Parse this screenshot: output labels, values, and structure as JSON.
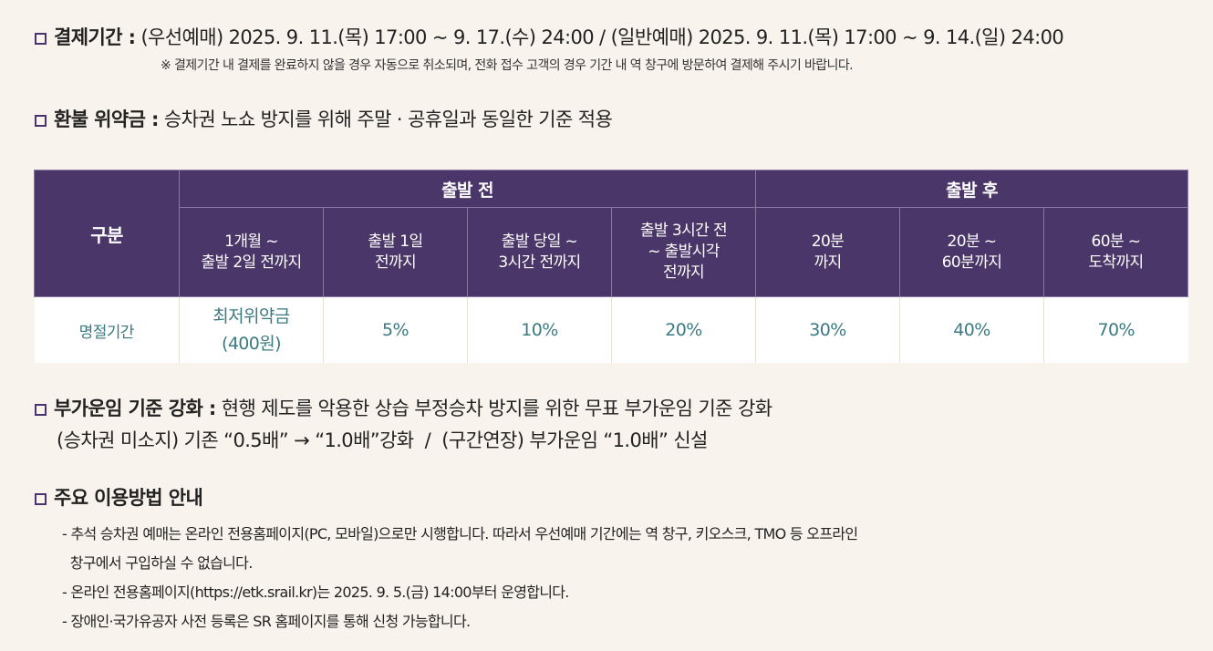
{
  "payment": {
    "heading": "결제기간 :",
    "text": "(우선예매) 2025. 9. 11.(목) 17:00 ~ 9. 17.(수) 24:00 / (일반예매) 2025. 9. 11.(목) 17:00 ~ 9. 14.(일) 24:00",
    "note": "※ 결제기간 내 결제를 완료하지 않을 경우 자동으로 취소되며, 전화 접수 고객의 경우 기간 내 역 창구에 방문하여 결제해 주시기 바랍니다."
  },
  "refund": {
    "heading": "환불 위약금 :",
    "text": "승차권 노쇼 방지를 위해 주말 · 공휴일과 동일한 기준 적용"
  },
  "table": {
    "gubun": "구분",
    "before": "출발 전",
    "after": "출발 후",
    "cols": [
      "1개월 ~\n출발 2일 전까지",
      "출발 1일\n전까지",
      "출발 당일 ~\n3시간 전까지",
      "출발 3시간 전\n~ 출발시각\n전까지",
      "20분\n까지",
      "20분 ~\n60분까지",
      "60분 ~\n도착까지"
    ],
    "row_label": "명절기간",
    "values": [
      "최저위약금\n(400원)",
      "5%",
      "10%",
      "20%",
      "30%",
      "40%",
      "70%"
    ]
  },
  "surcharge": {
    "heading": "부가운임 기준 강화 :",
    "text": "현행 제도를 악용한 상습 부정승차 방지를 위한 무표 부가운임 기준 강화",
    "line2": "(승차권 미소지) 기존 “0.5배” → “1.0배”강화  /  (구간연장) 부가운임 “1.0배” 신설"
  },
  "usage": {
    "heading": "주요 이용방법 안내",
    "items": [
      "- 추석 승차권 예매는 온라인 전용홈페이지(PC, 모바일)으로만 시행합니다. 따라서 우선예매 기간에는 역 창구, 키오스크, TMO 등 오프라인",
      "  창구에서 구입하실 수 없습니다.",
      "- 온라인 전용홈페이지(https://etk.srail.kr)는 2025. 9. 5.(금) 14:00부터 운영합니다.",
      "- 장애인·국가유공자 사전 등록은 SR 홈페이지를 통해 신청 가능합니다."
    ]
  }
}
